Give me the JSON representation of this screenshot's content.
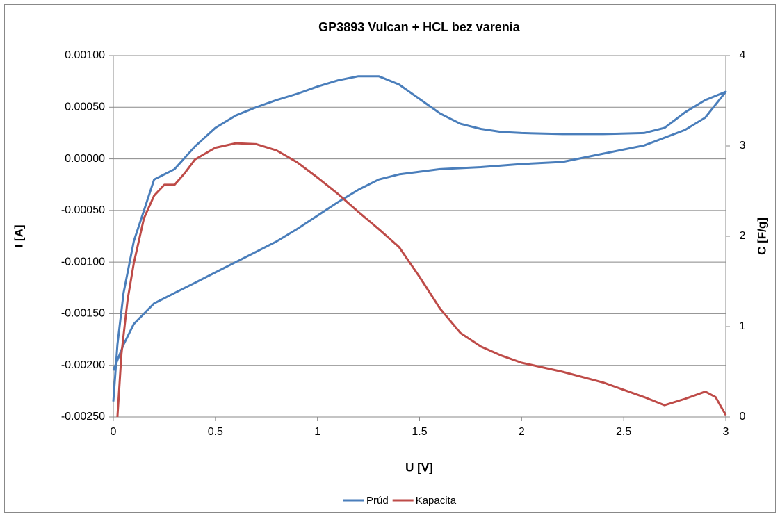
{
  "chart_data": {
    "type": "line",
    "title": "GP3893 Vulcan + HCL bez varenia",
    "xlabel": "U [V]",
    "ylabel": "I [A]",
    "y2label": "C [F/g]",
    "xlim": [
      0,
      3
    ],
    "xticks": [
      0,
      0.5,
      1,
      1.5,
      2,
      2.5,
      3
    ],
    "ylim": [
      -0.0025,
      0.001
    ],
    "yticks": [
      {
        "value": -0.0025,
        "label": "-0.00250"
      },
      {
        "value": -0.002,
        "label": "-0.00200"
      },
      {
        "value": -0.0015,
        "label": "-0.00150"
      },
      {
        "value": -0.001,
        "label": "-0.00100"
      },
      {
        "value": -0.0005,
        "label": "-0.00050"
      },
      {
        "value": 0,
        "label": "0.00000"
      },
      {
        "value": 0.0005,
        "label": "0.00050"
      },
      {
        "value": 0.001,
        "label": "0.00100"
      }
    ],
    "y2lim": [
      0,
      4
    ],
    "y2ticks": [
      0,
      1,
      2,
      3,
      4
    ],
    "grid": true,
    "legend": "bottom",
    "series": [
      {
        "name": "Prúd",
        "color": "#4a7ebb",
        "axis": "y",
        "x": [
          0,
          0.02,
          0.05,
          0.1,
          0.15,
          0.2,
          0.25,
          0.3,
          0.4,
          0.5,
          0.6,
          0.7,
          0.8,
          0.9,
          1.0,
          1.1,
          1.2,
          1.3,
          1.4,
          1.5,
          1.6,
          1.7,
          1.8,
          1.9,
          2.0,
          2.2,
          2.4,
          2.6,
          2.7,
          2.8,
          2.9,
          3.0,
          2.9,
          2.8,
          2.6,
          2.4,
          2.2,
          2.0,
          1.8,
          1.6,
          1.4,
          1.3,
          1.2,
          1.1,
          1.0,
          0.9,
          0.8,
          0.7,
          0.6,
          0.5,
          0.4,
          0.3,
          0.2,
          0.1,
          0.05,
          0
        ],
        "values": [
          -0.00235,
          -0.0018,
          -0.0013,
          -0.0008,
          -0.0005,
          -0.0002,
          -0.00015,
          -0.0001,
          0.00012,
          0.0003,
          0.00042,
          0.0005,
          0.00057,
          0.00063,
          0.0007,
          0.00076,
          0.0008,
          0.0008,
          0.00072,
          0.00058,
          0.00044,
          0.00034,
          0.00029,
          0.00026,
          0.00025,
          0.00024,
          0.00024,
          0.00025,
          0.0003,
          0.00045,
          0.00057,
          0.00065,
          0.0004,
          0.00028,
          0.00013,
          5e-05,
          -3e-05,
          -5e-05,
          -8e-05,
          -0.0001,
          -0.00015,
          -0.0002,
          -0.0003,
          -0.00042,
          -0.00055,
          -0.00068,
          -0.0008,
          -0.0009,
          -0.001,
          -0.0011,
          -0.0012,
          -0.0013,
          -0.0014,
          -0.0016,
          -0.0018,
          -0.00205
        ]
      },
      {
        "name": "Kapacita",
        "color": "#be4b48",
        "axis": "y2",
        "x": [
          0.02,
          0.04,
          0.07,
          0.1,
          0.15,
          0.2,
          0.25,
          0.3,
          0.35,
          0.4,
          0.5,
          0.6,
          0.7,
          0.8,
          0.9,
          1.0,
          1.1,
          1.2,
          1.3,
          1.4,
          1.5,
          1.6,
          1.7,
          1.8,
          1.9,
          2.0,
          2.2,
          2.4,
          2.6,
          2.7,
          2.8,
          2.9,
          2.95,
          3.0
        ],
        "values": [
          0,
          0.7,
          1.3,
          1.7,
          2.2,
          2.45,
          2.57,
          2.57,
          2.7,
          2.85,
          2.98,
          3.03,
          3.02,
          2.95,
          2.82,
          2.65,
          2.47,
          2.27,
          2.08,
          1.88,
          1.55,
          1.2,
          0.93,
          0.78,
          0.68,
          0.6,
          0.5,
          0.38,
          0.22,
          0.13,
          0.2,
          0.28,
          0.22,
          0.02
        ]
      }
    ]
  }
}
